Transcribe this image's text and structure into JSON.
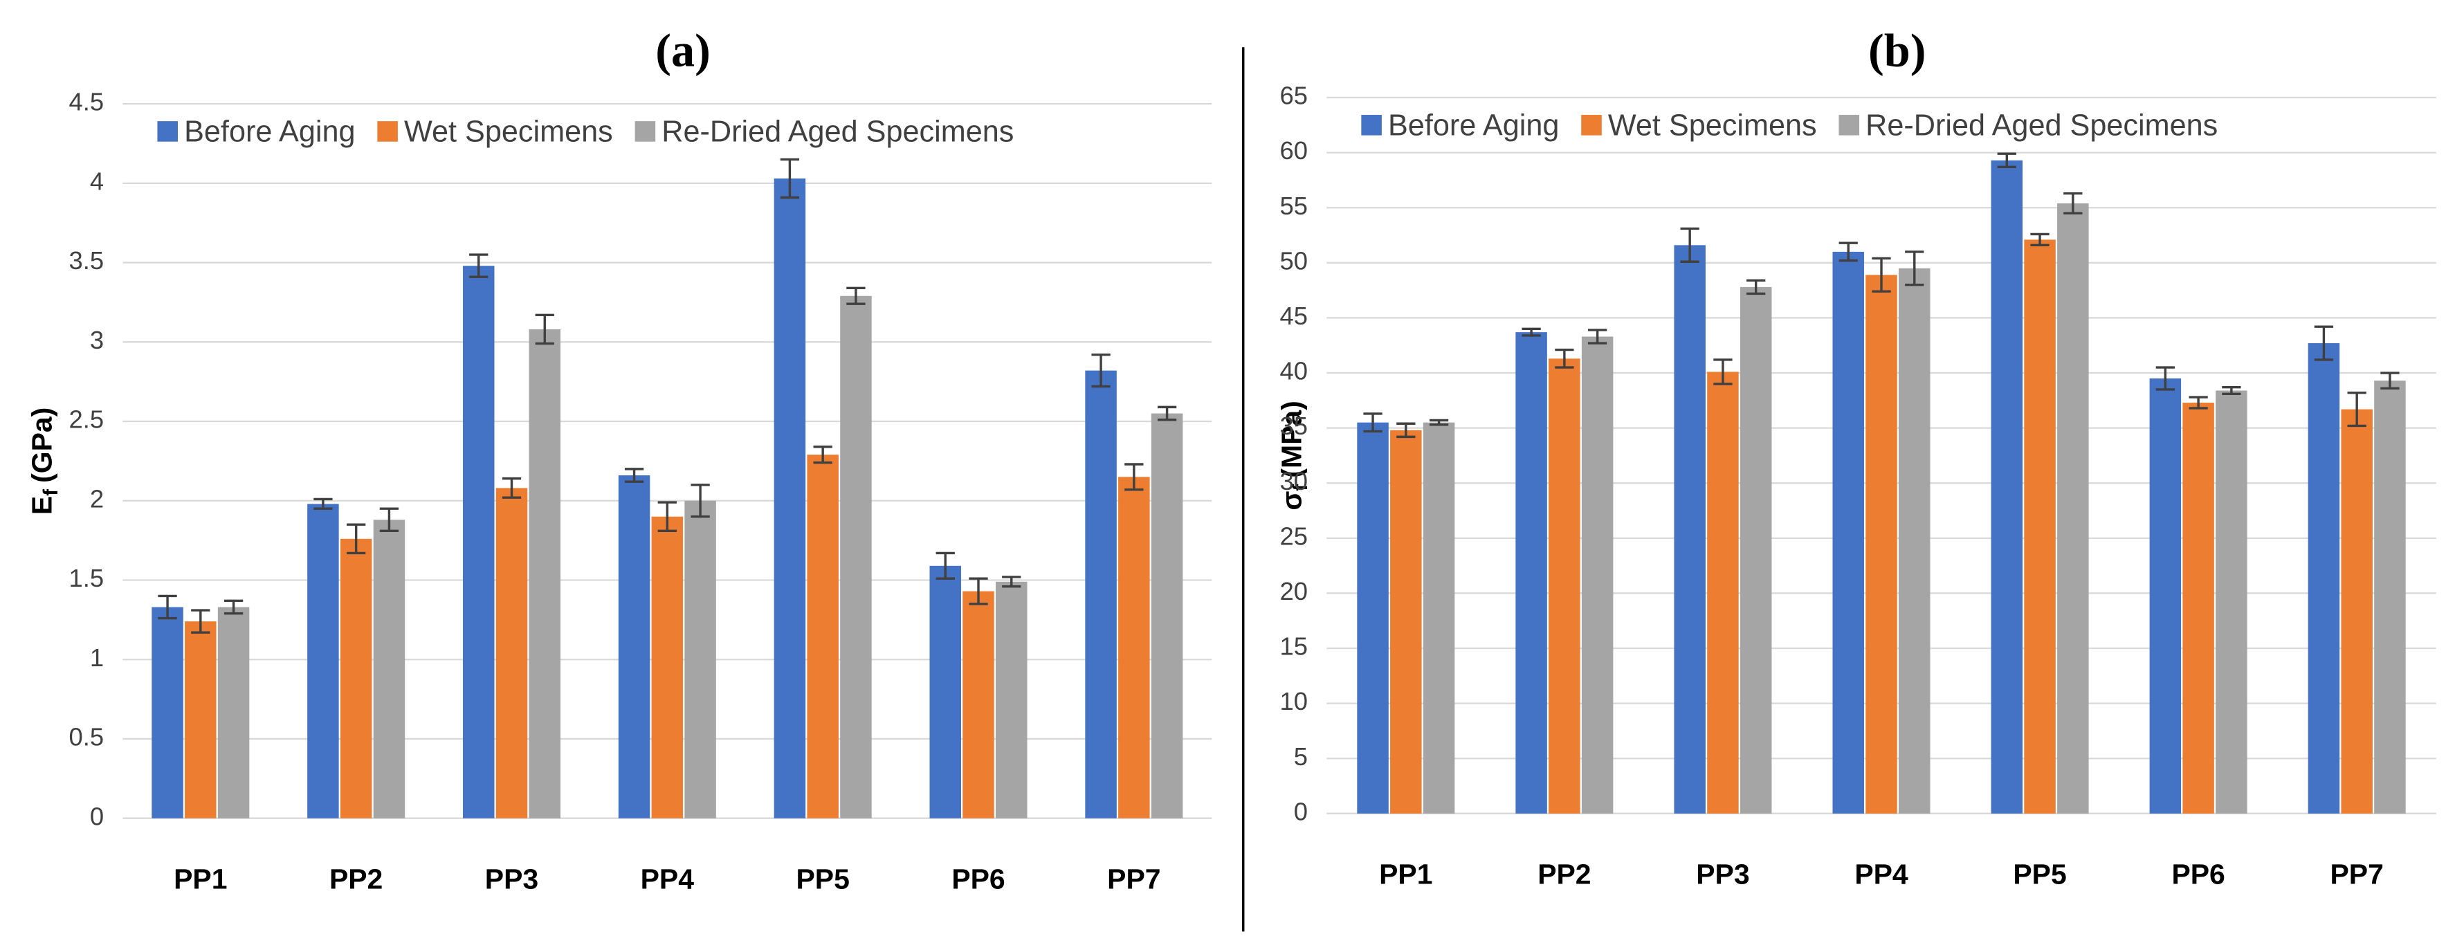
{
  "chart_data": [
    {
      "type": "bar",
      "title": "(a)",
      "y_label": {
        "symbol": "E",
        "subscript": "f",
        "unit": "(GPa)"
      },
      "categories": [
        "PP1",
        "PP2",
        "PP3",
        "PP4",
        "PP5",
        "PP6",
        "PP7"
      ],
      "series": [
        {
          "name": "Before Aging",
          "color": "#4472c4",
          "values": [
            1.33,
            1.98,
            3.48,
            2.16,
            4.03,
            1.59,
            2.82
          ],
          "errors": [
            0.07,
            0.03,
            0.07,
            0.04,
            0.12,
            0.08,
            0.1
          ]
        },
        {
          "name": "Wet Specimens",
          "color": "#ed7d31",
          "values": [
            1.24,
            1.76,
            2.08,
            1.9,
            2.29,
            1.43,
            2.15
          ],
          "errors": [
            0.07,
            0.09,
            0.06,
            0.09,
            0.05,
            0.08,
            0.08
          ]
        },
        {
          "name": "Re-Dried Aged Specimens",
          "color": "#a5a5a5",
          "values": [
            1.33,
            1.88,
            3.08,
            2.0,
            3.29,
            1.49,
            2.55
          ],
          "errors": [
            0.04,
            0.07,
            0.09,
            0.1,
            0.05,
            0.03,
            0.04
          ]
        }
      ],
      "ylim": [
        0,
        4.5
      ],
      "yticks": [
        0,
        0.5,
        1,
        1.5,
        2,
        2.5,
        3,
        3.5,
        4,
        4.5
      ],
      "grid": true,
      "legend": "top"
    },
    {
      "type": "bar",
      "title": "(b)",
      "y_label": {
        "symbol": "σ",
        "subscript": "f",
        "unit": "(MPa)"
      },
      "categories": [
        "PP1",
        "PP2",
        "PP3",
        "PP4",
        "PP5",
        "PP6",
        "PP7"
      ],
      "series": [
        {
          "name": "Before Aging",
          "color": "#4472c4",
          "values": [
            35.5,
            43.7,
            51.6,
            51.0,
            59.3,
            39.5,
            42.7
          ],
          "errors": [
            0.8,
            0.3,
            1.5,
            0.8,
            0.6,
            1.0,
            1.5
          ]
        },
        {
          "name": "Wet Specimens",
          "color": "#ed7d31",
          "values": [
            34.8,
            41.3,
            40.1,
            48.9,
            52.1,
            37.3,
            36.7
          ],
          "errors": [
            0.6,
            0.8,
            1.1,
            1.5,
            0.5,
            0.5,
            1.5
          ]
        },
        {
          "name": "Re-Dried Aged Specimens",
          "color": "#a5a5a5",
          "values": [
            35.5,
            43.3,
            47.8,
            49.5,
            55.4,
            38.4,
            39.3
          ],
          "errors": [
            0.2,
            0.6,
            0.6,
            1.5,
            0.9,
            0.3,
            0.7
          ]
        }
      ],
      "ylim": [
        0,
        65
      ],
      "yticks": [
        0,
        5,
        10,
        15,
        20,
        25,
        30,
        35,
        40,
        45,
        50,
        55,
        60,
        65
      ],
      "grid": true,
      "legend": "top"
    }
  ]
}
